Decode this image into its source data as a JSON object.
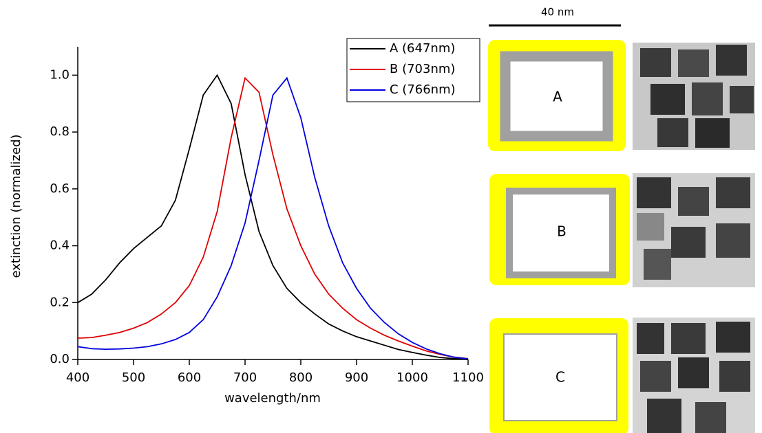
{
  "chart_data": {
    "type": "line",
    "xlabel": "wavelength/nm",
    "ylabel": "extinction (normalized)",
    "x": [
      400,
      425,
      450,
      475,
      500,
      525,
      550,
      575,
      600,
      625,
      650,
      675,
      700,
      725,
      750,
      775,
      800,
      825,
      850,
      875,
      900,
      925,
      950,
      975,
      1000,
      1025,
      1050,
      1075,
      1100
    ],
    "series": [
      {
        "name": "A (647nm)",
        "color": "#000000",
        "values": [
          0.2,
          0.23,
          0.28,
          0.34,
          0.39,
          0.43,
          0.47,
          0.56,
          0.74,
          0.93,
          1.0,
          0.9,
          0.65,
          0.45,
          0.33,
          0.25,
          0.2,
          0.16,
          0.125,
          0.1,
          0.08,
          0.065,
          0.05,
          0.035,
          0.025,
          0.015,
          0.007,
          0.003,
          0.0
        ]
      },
      {
        "name": "B (703nm)",
        "color": "#e00000",
        "values": [
          0.075,
          0.077,
          0.085,
          0.095,
          0.11,
          0.13,
          0.16,
          0.2,
          0.26,
          0.36,
          0.52,
          0.78,
          0.99,
          0.94,
          0.72,
          0.53,
          0.4,
          0.3,
          0.23,
          0.18,
          0.14,
          0.11,
          0.085,
          0.065,
          0.047,
          0.03,
          0.018,
          0.008,
          0.003
        ]
      },
      {
        "name": "C (766nm)",
        "color": "#0000e0",
        "values": [
          0.045,
          0.038,
          0.036,
          0.037,
          0.04,
          0.045,
          0.055,
          0.07,
          0.095,
          0.14,
          0.22,
          0.33,
          0.48,
          0.7,
          0.93,
          0.99,
          0.85,
          0.64,
          0.47,
          0.34,
          0.25,
          0.18,
          0.13,
          0.09,
          0.06,
          0.037,
          0.02,
          0.008,
          0.002
        ]
      }
    ],
    "xlim": [
      400,
      1100
    ],
    "xticks": [
      400,
      500,
      600,
      700,
      800,
      900,
      1000,
      1100
    ],
    "ylim": [
      0,
      1.1
    ],
    "yticks": [
      {
        "value": 0,
        "label": "0.0"
      },
      0.2,
      0.4,
      0.6,
      0.8,
      {
        "value": 1,
        "label": "1.0"
      }
    ],
    "legend": "upper right",
    "grid": false
  },
  "schematic": {
    "scale_bar": "40 nm",
    "labels": [
      "A",
      "B",
      "C"
    ]
  }
}
